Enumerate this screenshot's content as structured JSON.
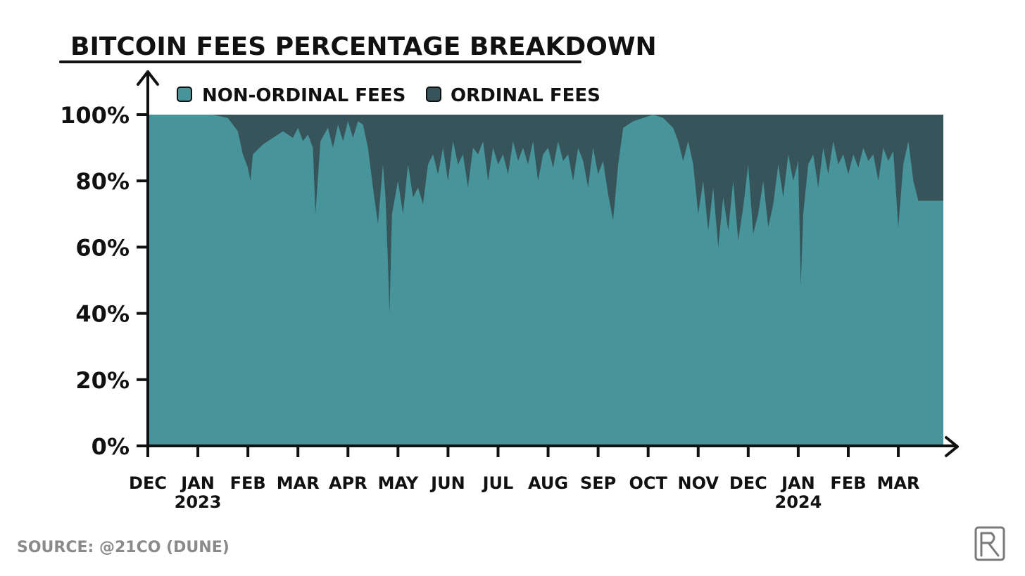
{
  "chart_data": {
    "type": "area",
    "title": "BITCOIN FEES PERCENTAGE BREAKDOWN",
    "source": "SOURCE: @21CO (DUNE)",
    "legend_position": "top-left",
    "grid": false,
    "stacked": true,
    "ylim": [
      0,
      100
    ],
    "y_ticks": [
      "0%",
      "20%",
      "40%",
      "60%",
      "80%",
      "100%"
    ],
    "y_tick_values": [
      0,
      20,
      40,
      60,
      80,
      100
    ],
    "x_ticks": [
      {
        "month": "DEC",
        "year": ""
      },
      {
        "month": "JAN",
        "year": "2023"
      },
      {
        "month": "FEB",
        "year": ""
      },
      {
        "month": "MAR",
        "year": ""
      },
      {
        "month": "APR",
        "year": ""
      },
      {
        "month": "MAY",
        "year": ""
      },
      {
        "month": "JUN",
        "year": ""
      },
      {
        "month": "JUL",
        "year": ""
      },
      {
        "month": "AUG",
        "year": ""
      },
      {
        "month": "SEP",
        "year": ""
      },
      {
        "month": "OCT",
        "year": ""
      },
      {
        "month": "NOV",
        "year": ""
      },
      {
        "month": "DEC",
        "year": ""
      },
      {
        "month": "JAN",
        "year": "2024"
      },
      {
        "month": "FEB",
        "year": ""
      },
      {
        "month": "MAR",
        "year": ""
      }
    ],
    "x_range_months": [
      0,
      15.9
    ],
    "x_unit": "months since Dec 2022",
    "series": [
      {
        "name": "NON-ORDINAL FEES",
        "color": "#47959b",
        "points": [
          [
            0.0,
            100
          ],
          [
            1.3,
            100
          ],
          [
            1.6,
            99
          ],
          [
            1.8,
            95
          ],
          [
            1.9,
            88
          ],
          [
            2.0,
            84
          ],
          [
            2.05,
            80
          ],
          [
            2.1,
            88
          ],
          [
            2.3,
            91
          ],
          [
            2.5,
            93
          ],
          [
            2.7,
            95
          ],
          [
            2.9,
            93
          ],
          [
            3.0,
            96
          ],
          [
            3.1,
            92
          ],
          [
            3.2,
            94
          ],
          [
            3.3,
            90
          ],
          [
            3.35,
            70
          ],
          [
            3.45,
            92
          ],
          [
            3.6,
            96
          ],
          [
            3.7,
            90
          ],
          [
            3.8,
            97
          ],
          [
            3.9,
            92
          ],
          [
            4.0,
            98
          ],
          [
            4.1,
            93
          ],
          [
            4.2,
            98
          ],
          [
            4.3,
            97
          ],
          [
            4.4,
            90
          ],
          [
            4.5,
            78
          ],
          [
            4.6,
            67
          ],
          [
            4.7,
            85
          ],
          [
            4.75,
            75
          ],
          [
            4.8,
            55
          ],
          [
            4.83,
            40
          ],
          [
            4.88,
            70
          ],
          [
            5.0,
            80
          ],
          [
            5.1,
            70
          ],
          [
            5.2,
            85
          ],
          [
            5.3,
            75
          ],
          [
            5.4,
            78
          ],
          [
            5.5,
            73
          ],
          [
            5.6,
            85
          ],
          [
            5.7,
            88
          ],
          [
            5.8,
            82
          ],
          [
            5.9,
            90
          ],
          [
            6.0,
            80
          ],
          [
            6.1,
            92
          ],
          [
            6.2,
            85
          ],
          [
            6.3,
            88
          ],
          [
            6.4,
            78
          ],
          [
            6.5,
            90
          ],
          [
            6.6,
            88
          ],
          [
            6.7,
            92
          ],
          [
            6.8,
            80
          ],
          [
            6.9,
            90
          ],
          [
            7.0,
            85
          ],
          [
            7.1,
            88
          ],
          [
            7.2,
            82
          ],
          [
            7.3,
            92
          ],
          [
            7.4,
            86
          ],
          [
            7.5,
            90
          ],
          [
            7.6,
            85
          ],
          [
            7.7,
            92
          ],
          [
            7.8,
            80
          ],
          [
            7.9,
            88
          ],
          [
            8.0,
            90
          ],
          [
            8.1,
            84
          ],
          [
            8.2,
            92
          ],
          [
            8.3,
            86
          ],
          [
            8.4,
            88
          ],
          [
            8.5,
            80
          ],
          [
            8.6,
            90
          ],
          [
            8.7,
            86
          ],
          [
            8.8,
            78
          ],
          [
            8.9,
            90
          ],
          [
            9.0,
            82
          ],
          [
            9.1,
            86
          ],
          [
            9.2,
            76
          ],
          [
            9.3,
            68
          ],
          [
            9.4,
            85
          ],
          [
            9.5,
            96
          ],
          [
            9.7,
            98
          ],
          [
            9.9,
            99
          ],
          [
            10.1,
            100
          ],
          [
            10.3,
            99
          ],
          [
            10.5,
            96
          ],
          [
            10.6,
            92
          ],
          [
            10.7,
            86
          ],
          [
            10.8,
            92
          ],
          [
            10.9,
            85
          ],
          [
            11.0,
            70
          ],
          [
            11.1,
            80
          ],
          [
            11.2,
            65
          ],
          [
            11.3,
            78
          ],
          [
            11.4,
            60
          ],
          [
            11.5,
            75
          ],
          [
            11.6,
            65
          ],
          [
            11.7,
            80
          ],
          [
            11.8,
            62
          ],
          [
            11.9,
            72
          ],
          [
            12.0,
            85
          ],
          [
            12.1,
            64
          ],
          [
            12.2,
            70
          ],
          [
            12.3,
            80
          ],
          [
            12.4,
            66
          ],
          [
            12.5,
            73
          ],
          [
            12.6,
            85
          ],
          [
            12.7,
            75
          ],
          [
            12.8,
            88
          ],
          [
            12.9,
            80
          ],
          [
            13.0,
            86
          ],
          [
            13.05,
            48
          ],
          [
            13.1,
            70
          ],
          [
            13.2,
            85
          ],
          [
            13.3,
            88
          ],
          [
            13.4,
            78
          ],
          [
            13.5,
            90
          ],
          [
            13.6,
            82
          ],
          [
            13.7,
            92
          ],
          [
            13.8,
            85
          ],
          [
            13.9,
            88
          ],
          [
            14.0,
            82
          ],
          [
            14.1,
            88
          ],
          [
            14.2,
            84
          ],
          [
            14.3,
            90
          ],
          [
            14.4,
            86
          ],
          [
            14.5,
            88
          ],
          [
            14.6,
            80
          ],
          [
            14.7,
            90
          ],
          [
            14.8,
            86
          ],
          [
            14.9,
            89
          ],
          [
            15.0,
            66
          ],
          [
            15.1,
            85
          ],
          [
            15.2,
            92
          ],
          [
            15.3,
            80
          ],
          [
            15.4,
            74
          ]
        ]
      },
      {
        "name": "ORDINAL FEES",
        "color": "#36545a",
        "fill_to": 100
      }
    ]
  }
}
